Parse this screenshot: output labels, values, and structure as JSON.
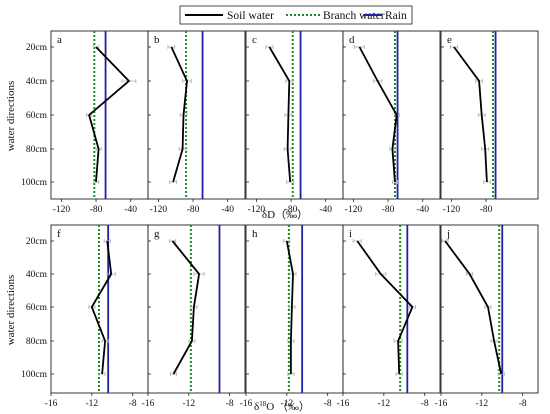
{
  "legend": {
    "soil": "Soil water",
    "branch": "Branch water",
    "rain": "Rain"
  },
  "colors": {
    "soil": "#000000",
    "branch": "#1f8a2a",
    "rain": "#1f1fa8",
    "error": "#b5b5b5"
  },
  "axes": {
    "ylabel_top": "water directions",
    "ylabel_bottom": "water directions",
    "xlabel_top": "δD（‰）",
    "xlabel_bottom_prefix": "δ",
    "xlabel_bottom_sup": "18",
    "xlabel_bottom_suffix": "O （‰）"
  },
  "chart_data": [
    {
      "type": "line",
      "row": "top",
      "panel": "a",
      "depths": [
        "20cm",
        "40cm",
        "60cm",
        "80cm",
        "100cm"
      ],
      "soil": [
        -80,
        -42,
        -88,
        -77,
        -80
      ],
      "soil_err": [
        3,
        8,
        3,
        3,
        3
      ],
      "branch": -82,
      "rain": -69,
      "xlim": [
        -132,
        -20
      ],
      "xticks": [
        -120,
        -80,
        -40
      ]
    },
    {
      "type": "line",
      "row": "top",
      "panel": "b",
      "depths": [
        "20cm",
        "40cm",
        "60cm",
        "80cm",
        "100cm"
      ],
      "soil": [
        -105,
        -87,
        -91,
        -92,
        -103
      ],
      "soil_err": [
        4,
        5,
        4,
        4,
        4
      ],
      "branch": -88,
      "rain": -69,
      "xlim": [
        -132,
        -20
      ],
      "xticks": [
        -120,
        -80,
        -40
      ]
    },
    {
      "type": "line",
      "row": "top",
      "panel": "c",
      "depths": [
        "20cm",
        "40cm",
        "60cm",
        "80cm",
        "100cm"
      ],
      "soil": [
        -105,
        -82,
        -83,
        -84,
        -81
      ],
      "soil_err": [
        4,
        4,
        4,
        4,
        4
      ],
      "branch": -78,
      "rain": -69,
      "xlim": [
        -132,
        -20
      ],
      "xticks": [
        -120,
        -80,
        -40
      ]
    },
    {
      "type": "line",
      "row": "top",
      "panel": "d",
      "depths": [
        "20cm",
        "40cm",
        "60cm",
        "80cm",
        "100cm"
      ],
      "soil": [
        -113,
        -92,
        -70,
        -75,
        -72
      ],
      "soil_err": [
        6,
        5,
        3,
        3,
        3
      ],
      "branch": -72,
      "rain": -69,
      "xlim": [
        -132,
        -20
      ],
      "xticks": [
        -120,
        -80,
        -40
      ]
    },
    {
      "type": "line",
      "row": "top",
      "panel": "e",
      "depths": [
        "20cm",
        "40cm",
        "60cm",
        "80cm",
        "100cm"
      ],
      "soil": [
        -117,
        -88,
        -85,
        -81,
        -79
      ],
      "soil_err": [
        4,
        4,
        4,
        4,
        4
      ],
      "branch": -72,
      "rain": -69,
      "xlim": [
        -132,
        -20
      ],
      "xticks": [
        -120,
        -80
      ]
    },
    {
      "type": "line",
      "row": "bottom",
      "panel": "f",
      "depths": [
        "20cm",
        "40cm",
        "60cm",
        "80cm",
        "100cm"
      ],
      "soil": [
        -10.5,
        -10.1,
        -12.0,
        -10.7,
        -11.0
      ],
      "soil_err": [
        0.3,
        0.4,
        0.3,
        0.3,
        0.3
      ],
      "branch": -11.3,
      "rain": -10.4,
      "xlim": [
        -16,
        -6.5
      ],
      "xticks": [
        -16,
        -12,
        -8
      ]
    },
    {
      "type": "line",
      "row": "bottom",
      "panel": "g",
      "depths": [
        "20cm",
        "40cm",
        "60cm",
        "80cm",
        "100cm"
      ],
      "soil": [
        -13.6,
        -11.0,
        -11.5,
        -11.7,
        -13.5
      ],
      "soil_err": [
        0.3,
        0.5,
        0.3,
        0.3,
        0.3
      ],
      "branch": -11.8,
      "rain": -9.0,
      "xlim": [
        -16,
        -6.5
      ],
      "xticks": [
        -16,
        -12,
        -8
      ]
    },
    {
      "type": "line",
      "row": "bottom",
      "panel": "h",
      "depths": [
        "20cm",
        "40cm",
        "60cm",
        "80cm",
        "100cm"
      ],
      "soil": [
        -12.0,
        -11.4,
        -11.5,
        -11.6,
        -11.6
      ],
      "soil_err": [
        0.3,
        0.3,
        0.3,
        0.3,
        0.3
      ],
      "branch": -11.8,
      "rain": -10.5,
      "xlim": [
        -16,
        -6.5
      ],
      "xticks": [
        -16,
        -12,
        -8
      ]
    },
    {
      "type": "line",
      "row": "bottom",
      "panel": "i",
      "depths": [
        "20cm",
        "40cm",
        "60cm",
        "80cm",
        "100cm"
      ],
      "soil": [
        -14.6,
        -12.3,
        -9.2,
        -10.6,
        -10.5
      ],
      "soil_err": [
        0.4,
        0.5,
        0.3,
        0.4,
        0.3
      ],
      "branch": -10.4,
      "rain": -9.7,
      "xlim": [
        -16,
        -6.5
      ],
      "xticks": [
        -16,
        -12,
        -8
      ]
    },
    {
      "type": "line",
      "row": "bottom",
      "panel": "j",
      "depths": [
        "20cm",
        "40cm",
        "60cm",
        "80cm",
        "100cm"
      ],
      "soil": [
        -15.6,
        -13.2,
        -11.4,
        -10.8,
        -10.1
      ],
      "soil_err": [
        0.3,
        0.3,
        0.3,
        0.3,
        0.3
      ],
      "branch": -10.3,
      "rain": -10.0,
      "xlim": [
        -16,
        -6.5
      ],
      "xticks": [
        -16,
        -12,
        -8
      ]
    }
  ]
}
